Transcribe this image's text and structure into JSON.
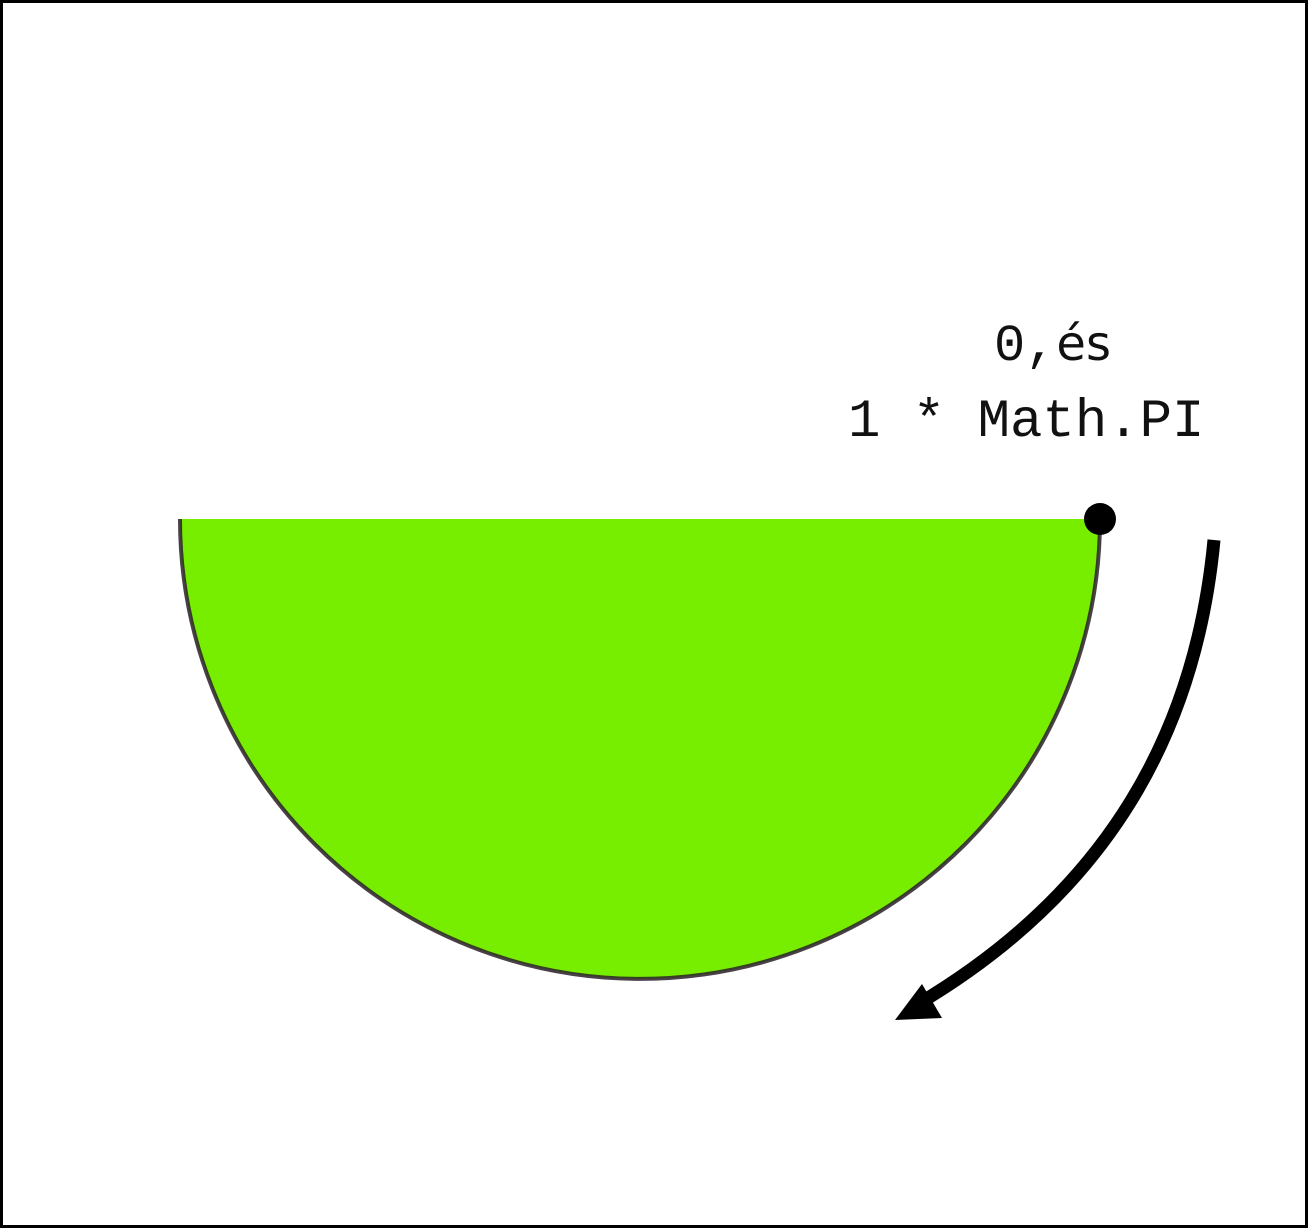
{
  "diagram": {
    "start_label_value": "0,",
    "start_label_conjunction": "és",
    "end_label": "1 * Math.PI",
    "shape": "semicircle",
    "fill_color": "#77ee00",
    "outline_color": "#2a1f2a",
    "direction": "clockwise",
    "start_point_marker": "dot",
    "arrow_icon": "curved-arrow-clockwise"
  }
}
